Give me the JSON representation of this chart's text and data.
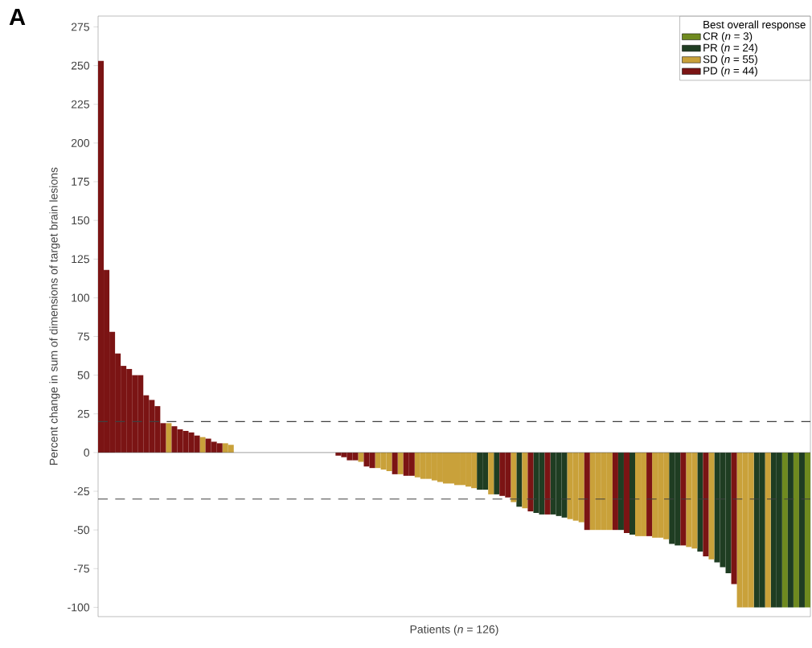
{
  "chart_data": {
    "type": "bar",
    "annotations": [
      "A"
    ],
    "xlabel": "Patients (*n* = 126)",
    "ylabel": "Percent change in sum of dimensions of target brain lesions",
    "legend_title": "Best overall response",
    "legend": "top right",
    "categories": [
      null,
      null,
      null,
      null,
      null,
      null,
      null,
      null,
      null,
      null,
      null,
      null,
      null,
      null,
      null,
      null,
      null,
      null,
      null,
      null,
      null,
      null,
      null,
      null,
      null,
      null,
      null,
      null,
      null,
      null,
      null,
      null,
      null,
      null,
      null,
      null,
      null,
      null,
      null,
      null,
      null,
      null,
      null,
      null,
      null,
      null,
      null,
      null,
      null,
      null,
      null,
      null,
      null,
      null,
      null,
      null,
      null,
      null,
      null,
      null,
      null,
      null,
      null,
      null,
      null,
      null,
      null,
      null,
      null,
      null,
      null,
      null,
      null,
      null,
      null,
      null,
      null,
      null,
      null,
      null,
      null,
      null,
      null,
      null,
      null,
      null,
      null,
      null,
      null,
      null,
      null,
      null,
      null,
      null,
      null,
      null,
      null,
      null,
      null,
      null,
      null,
      null,
      null,
      null,
      null,
      null,
      null,
      null,
      null,
      null,
      null,
      null,
      null,
      null,
      null,
      null,
      null,
      null,
      null,
      null,
      null,
      null,
      null,
      null,
      null,
      null
    ],
    "series": [
      {
        "name": "CR (*n* = 3)",
        "color": "#6f8a1f",
        "values": [
          null,
          null,
          null,
          null,
          null,
          null,
          null,
          null,
          null,
          null,
          null,
          null,
          null,
          null,
          null,
          null,
          null,
          null,
          null,
          null,
          null,
          null,
          null,
          null,
          null,
          null,
          null,
          null,
          null,
          null,
          null,
          null,
          null,
          null,
          null,
          null,
          null,
          null,
          null,
          null,
          null,
          null,
          null,
          null,
          null,
          null,
          null,
          null,
          null,
          null,
          null,
          null,
          null,
          null,
          null,
          null,
          null,
          null,
          null,
          null,
          null,
          null,
          null,
          null,
          null,
          null,
          null,
          null,
          null,
          null,
          null,
          null,
          null,
          null,
          null,
          null,
          null,
          null,
          null,
          null,
          null,
          null,
          null,
          null,
          null,
          null,
          null,
          null,
          null,
          null,
          null,
          null,
          null,
          null,
          null,
          null,
          null,
          null,
          null,
          null,
          null,
          null,
          null,
          null,
          null,
          null,
          null,
          null,
          null,
          null,
          null,
          null,
          null,
          null,
          null,
          null,
          null,
          null,
          null,
          null,
          null,
          -100,
          null,
          -100,
          null,
          -100
        ]
      },
      {
        "name": "PR (*n* = 24)",
        "color": "#1f3d22",
        "values": [
          null,
          null,
          null,
          null,
          null,
          null,
          null,
          null,
          null,
          null,
          null,
          null,
          null,
          null,
          null,
          null,
          null,
          null,
          null,
          null,
          null,
          null,
          null,
          null,
          null,
          null,
          null,
          null,
          null,
          null,
          null,
          null,
          null,
          null,
          null,
          null,
          null,
          null,
          null,
          null,
          null,
          null,
          null,
          null,
          null,
          null,
          null,
          null,
          null,
          null,
          null,
          null,
          null,
          null,
          null,
          null,
          null,
          null,
          null,
          null,
          null,
          null,
          null,
          null,
          null,
          null,
          null,
          -24,
          -24,
          null,
          -27,
          null,
          null,
          null,
          -35,
          null,
          null,
          -39,
          -40,
          null,
          -40,
          -41,
          -42,
          null,
          null,
          null,
          null,
          null,
          null,
          null,
          null,
          null,
          -50,
          null,
          -53,
          null,
          null,
          null,
          null,
          null,
          null,
          -59,
          -60,
          null,
          null,
          null,
          -64,
          null,
          null,
          -71,
          -74,
          -78,
          null,
          null,
          null,
          null,
          -100,
          -100,
          null,
          -100,
          -100,
          null,
          -100,
          null,
          -100,
          null
        ]
      },
      {
        "name": "SD (*n* = 55)",
        "color": "#c9a13a",
        "values": [
          null,
          null,
          null,
          null,
          null,
          null,
          null,
          null,
          null,
          null,
          null,
          null,
          19,
          null,
          null,
          null,
          null,
          null,
          10,
          null,
          null,
          null,
          6,
          5,
          0,
          0,
          0,
          0,
          0,
          0,
          0,
          0,
          0,
          0,
          0,
          0,
          0,
          0,
          0,
          0,
          0,
          0,
          null,
          null,
          null,
          null,
          -6,
          null,
          null,
          -10,
          -11,
          -12,
          null,
          -14,
          null,
          null,
          -16,
          -17,
          -17,
          -18,
          -19,
          -20,
          -20,
          -21,
          -21,
          -22,
          -23,
          null,
          null,
          -27,
          null,
          null,
          null,
          -32,
          null,
          -36,
          null,
          null,
          null,
          null,
          null,
          null,
          null,
          -43,
          -44,
          -45,
          null,
          -50,
          -50,
          -50,
          -50,
          null,
          null,
          null,
          null,
          -54,
          -54,
          null,
          -55,
          -55,
          -56,
          null,
          null,
          null,
          -61,
          -62,
          null,
          null,
          -69,
          null,
          null,
          null,
          null,
          -100,
          -100,
          -100,
          null,
          null,
          -100,
          null,
          null,
          null,
          null,
          null,
          null,
          null
        ]
      },
      {
        "name": "PD (*n* = 44)",
        "color": "#7b1414",
        "values": [
          253,
          118,
          78,
          64,
          56,
          54,
          50,
          50,
          37,
          34,
          30,
          19,
          null,
          17,
          15,
          14,
          13,
          11,
          null,
          9,
          7,
          6,
          null,
          null,
          null,
          null,
          null,
          null,
          null,
          null,
          null,
          null,
          null,
          null,
          null,
          null,
          null,
          null,
          null,
          null,
          null,
          null,
          -2,
          -3,
          -5,
          -5,
          null,
          -9,
          -10,
          null,
          null,
          null,
          -14,
          null,
          -15,
          -15,
          null,
          null,
          null,
          null,
          null,
          null,
          null,
          null,
          null,
          null,
          null,
          null,
          null,
          null,
          null,
          -28,
          -29,
          null,
          null,
          null,
          -38,
          null,
          null,
          -40,
          null,
          null,
          null,
          null,
          null,
          null,
          -50,
          null,
          null,
          null,
          null,
          -50,
          null,
          -52,
          null,
          null,
          null,
          -54,
          null,
          null,
          null,
          null,
          null,
          -60,
          null,
          null,
          null,
          -67,
          null,
          null,
          null,
          null,
          -85,
          null,
          null,
          null,
          null,
          null,
          null,
          null,
          null,
          null,
          null,
          null,
          null,
          null
        ]
      }
    ],
    "ylim": [
      -106,
      282
    ],
    "yticks": [
      -100,
      -75,
      -50,
      -25,
      0,
      25,
      50,
      75,
      100,
      125,
      150,
      175,
      200,
      225,
      250,
      275
    ],
    "ref_lines": [
      {
        "axis": "y",
        "value": 20,
        "color": "#404040",
        "line_style": "dashed"
      },
      {
        "axis": "y",
        "value": -30,
        "color": "#404040",
        "line_style": "dashed"
      }
    ]
  }
}
